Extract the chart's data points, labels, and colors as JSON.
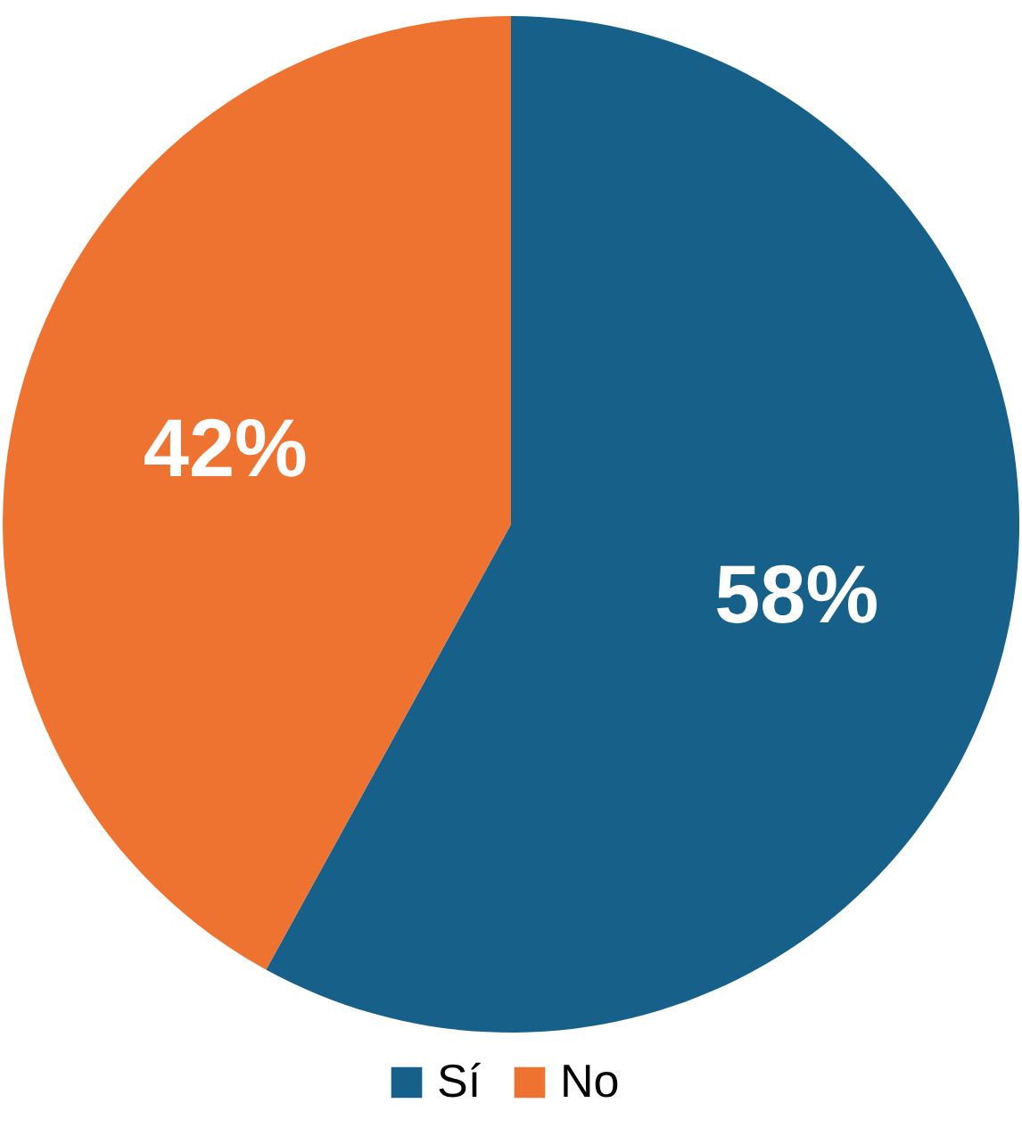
{
  "chart_data": {
    "type": "pie",
    "categories": [
      "Sí",
      "No"
    ],
    "values": [
      58,
      42
    ],
    "colors": [
      "#17608a",
      "#ee7331"
    ],
    "value_labels": [
      "58%",
      "42%"
    ],
    "legend": "bottom"
  }
}
